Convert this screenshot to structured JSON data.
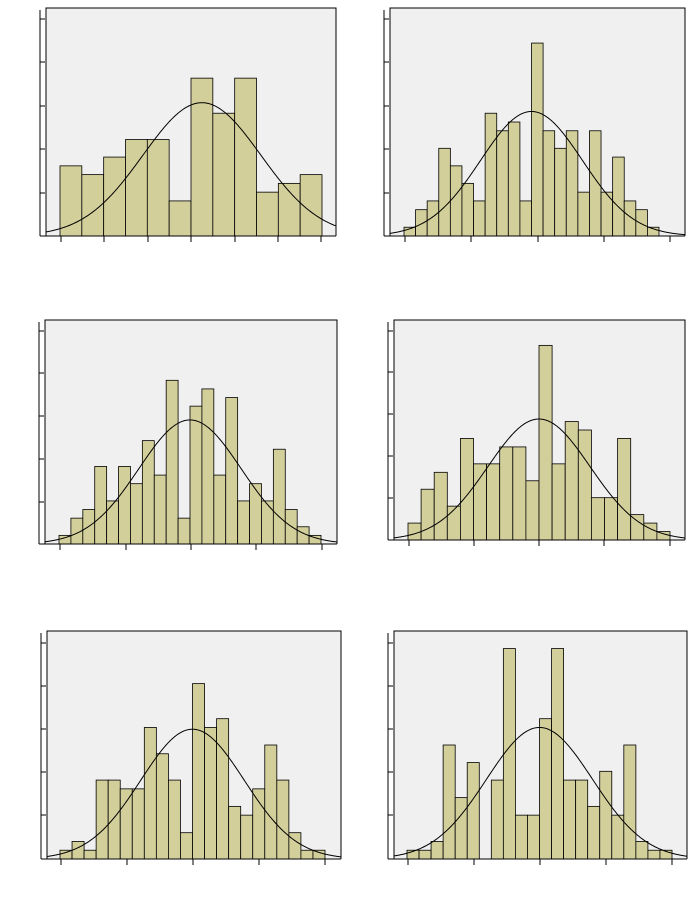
{
  "colors": {
    "bar": "#d3cf9b",
    "plot_bg": "#f0f0f0",
    "line": "#000000",
    "page_bg": "#ffffff"
  },
  "chart_data": [
    {
      "type": "bar",
      "panel": "row-1-left",
      "values": [
        8,
        7,
        9,
        11,
        11,
        4,
        18,
        14,
        18,
        5,
        6,
        7
      ],
      "ylim": [
        0,
        26
      ],
      "curve": {
        "mean": 6.5,
        "sd": 2.7,
        "peak": 15.2
      },
      "grid": false
    },
    {
      "type": "bar",
      "panel": "row-1-right",
      "values": [
        1,
        3,
        4,
        10,
        8,
        6,
        4,
        14,
        12,
        13,
        4,
        22,
        12,
        10,
        12,
        5,
        12,
        5,
        9,
        4,
        3,
        1
      ],
      "ylim": [
        0,
        26
      ],
      "curve": {
        "mean": 11,
        "sd": 4.4,
        "peak": 14.2
      },
      "grid": false
    },
    {
      "type": "bar",
      "panel": "row-2-left",
      "values": [
        1,
        3,
        4,
        9,
        5,
        9,
        7,
        12,
        8,
        19,
        3,
        16,
        18,
        8,
        17,
        5,
        7,
        5,
        11,
        4,
        2,
        1
      ],
      "ylim": [
        0,
        26
      ],
      "curve": {
        "mean": 11,
        "sd": 4.3,
        "peak": 14.4
      },
      "grid": false
    },
    {
      "type": "bar",
      "panel": "row-2-right",
      "values": [
        2,
        6,
        8,
        4,
        12,
        9,
        9,
        11,
        11,
        7,
        23,
        9,
        14,
        13,
        5,
        5,
        12,
        3,
        2,
        1
      ],
      "ylim": [
        0,
        26
      ],
      "curve": {
        "mean": 10,
        "sd": 3.9,
        "peak": 14.3
      },
      "grid": false
    },
    {
      "type": "bar",
      "panel": "row-3-left",
      "values": [
        1,
        2,
        1,
        9,
        9,
        8,
        8,
        15,
        12,
        9,
        3,
        20,
        15,
        16,
        6,
        5,
        8,
        13,
        9,
        3,
        1,
        1
      ],
      "ylim": [
        0,
        26
      ],
      "curve": {
        "mean": 11,
        "sd": 4.3,
        "peak": 14.8
      },
      "grid": false
    },
    {
      "type": "bar",
      "panel": "row-3-right",
      "values": [
        1,
        1,
        2,
        13,
        7,
        11,
        0,
        9,
        24,
        5,
        5,
        16,
        24,
        9,
        9,
        6,
        10,
        5,
        13,
        2,
        1,
        1
      ],
      "ylim": [
        0,
        26
      ],
      "curve": {
        "mean": 11,
        "sd": 4.4,
        "peak": 15.0
      },
      "grid": false
    }
  ]
}
